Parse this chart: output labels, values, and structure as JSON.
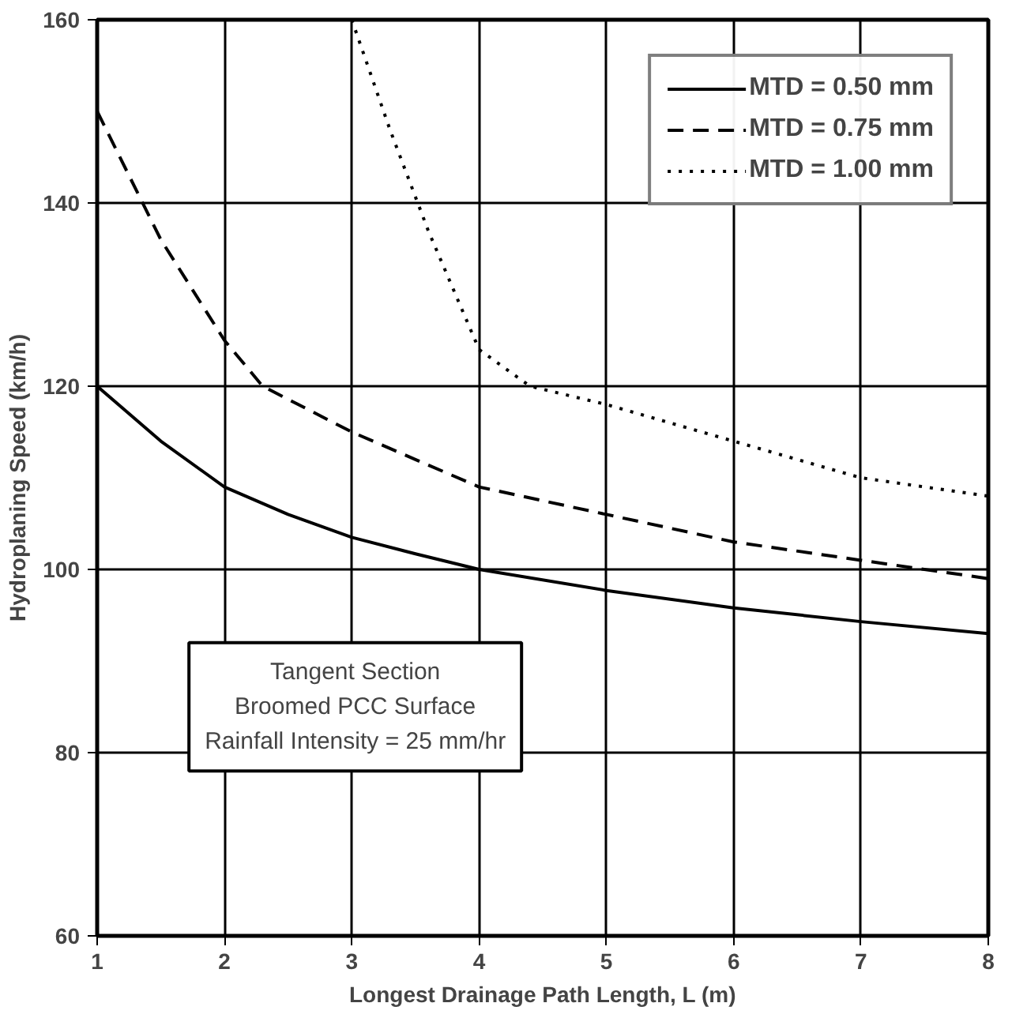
{
  "chart_data": {
    "type": "line",
    "xlabel": "Longest Drainage Path Length, L (m)",
    "ylabel": "Hydroplaning Speed (km/h)",
    "xlim": [
      1,
      8
    ],
    "ylim": [
      60,
      160
    ],
    "xticks": [
      1,
      2,
      3,
      4,
      5,
      6,
      7,
      8
    ],
    "yticks": [
      60,
      80,
      100,
      120,
      140,
      160
    ],
    "grid": true,
    "legend": "top right",
    "series": [
      {
        "name": "MTD = 0.50 mm",
        "color": "#000000",
        "line_style": "solid",
        "x": [
          1,
          1.5,
          2,
          2.5,
          3,
          3.5,
          4,
          5,
          6,
          7,
          8
        ],
        "values": [
          120,
          114,
          109,
          106,
          103.5,
          101.7,
          100,
          97.7,
          95.8,
          94.3,
          93
        ]
      },
      {
        "name": "MTD = 0.75 mm",
        "color": "#000000",
        "line_style": "dashed",
        "x": [
          1,
          1.5,
          2,
          2.3,
          3,
          3.5,
          4,
          5,
          6,
          7,
          8
        ],
        "values": [
          150,
          136,
          125,
          120,
          115,
          112,
          109,
          106,
          103,
          101,
          99
        ]
      },
      {
        "name": "MTD = 1.00 mm",
        "color": "#000000",
        "line_style": "dotted",
        "x": [
          3,
          3.3,
          3.6,
          4,
          4.4,
          5,
          6,
          7,
          8
        ],
        "values": [
          160,
          148,
          137,
          124,
          120,
          118,
          114,
          110,
          108
        ]
      }
    ],
    "annotations": [
      "Tangent Section\nBroomed PCC Surface\nRainfall Intensity = 25 mm/hr"
    ]
  }
}
